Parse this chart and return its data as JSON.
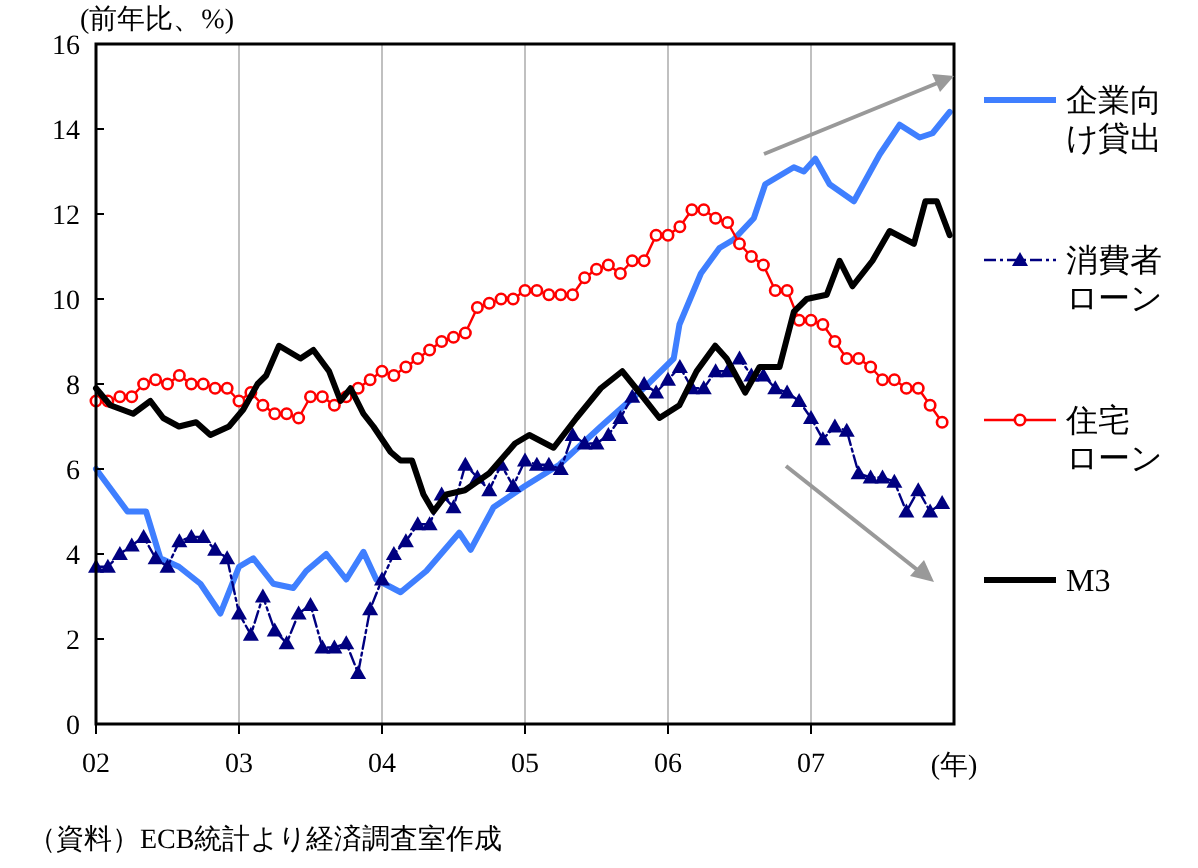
{
  "chart_data": {
    "type": "line",
    "ylabel": "(前年比、%)",
    "xlabel": "(年)",
    "annotations": [
      "（資料）ECB統計より経済調査室作成"
    ],
    "xlim": [
      2002,
      2008
    ],
    "ylim": [
      0,
      16
    ],
    "xticks": [
      {
        "value": 2002,
        "label": "02"
      },
      {
        "value": 2003,
        "label": "03"
      },
      {
        "value": 2004,
        "label": "04"
      },
      {
        "value": 2005,
        "label": "05"
      },
      {
        "value": 2006,
        "label": "06"
      },
      {
        "value": 2007,
        "label": "07"
      }
    ],
    "yticks": [
      0,
      2,
      4,
      6,
      8,
      10,
      12,
      14,
      16
    ],
    "grid": "x",
    "legend": "right",
    "series": [
      {
        "name": "企業向け貸出",
        "color": "#3f7fff",
        "x": [
          2002.0,
          2002.22,
          2002.35,
          2002.45,
          2002.58,
          2002.73,
          2002.87,
          2003.0,
          2003.1,
          2003.24,
          2003.38,
          2003.47,
          2003.61,
          2003.75,
          2003.87,
          2003.96,
          2004.13,
          2004.31,
          2004.54,
          2004.62,
          2004.78,
          2005.0,
          2005.24,
          2005.53,
          2005.83,
          2006.04,
          2006.08,
          2006.23,
          2006.36,
          2006.46,
          2006.6,
          2006.68,
          2006.78,
          2006.88,
          2006.95,
          2007.03,
          2007.13,
          2007.3,
          2007.48,
          2007.62,
          2007.76,
          2007.85,
          2007.97
        ],
        "values": [
          6.0,
          5.0,
          5.0,
          3.9,
          3.7,
          3.3,
          2.6,
          3.7,
          3.9,
          3.3,
          3.2,
          3.6,
          4.0,
          3.4,
          4.05,
          3.4,
          3.1,
          3.6,
          4.5,
          4.1,
          5.1,
          5.6,
          6.1,
          7.0,
          7.9,
          8.6,
          9.4,
          10.6,
          11.2,
          11.4,
          11.9,
          12.7,
          12.9,
          13.1,
          13.0,
          13.3,
          12.7,
          12.3,
          13.4,
          14.1,
          13.8,
          13.9,
          14.4
        ]
      },
      {
        "name": "消費者ローン",
        "color": "#000080",
        "marker": "triangle",
        "line_style": "dashed",
        "x": [
          2002.0,
          2002.083,
          2002.167,
          2002.25,
          2002.333,
          2002.417,
          2002.5,
          2002.583,
          2002.667,
          2002.75,
          2002.833,
          2002.917,
          2003.0,
          2003.083,
          2003.167,
          2003.25,
          2003.333,
          2003.417,
          2003.5,
          2003.583,
          2003.667,
          2003.75,
          2003.833,
          2003.917,
          2004.0,
          2004.083,
          2004.167,
          2004.25,
          2004.333,
          2004.417,
          2004.5,
          2004.583,
          2004.667,
          2004.75,
          2004.833,
          2004.917,
          2005.0,
          2005.083,
          2005.167,
          2005.25,
          2005.333,
          2005.417,
          2005.5,
          2005.583,
          2005.667,
          2005.75,
          2005.833,
          2005.917,
          2006.0,
          2006.083,
          2006.167,
          2006.25,
          2006.333,
          2006.417,
          2006.5,
          2006.583,
          2006.667,
          2006.75,
          2006.833,
          2006.917,
          2007.0,
          2007.083,
          2007.167,
          2007.25,
          2007.333,
          2007.417,
          2007.5,
          2007.583,
          2007.667,
          2007.75,
          2007.833,
          2007.917
        ],
        "values": [
          3.7,
          3.7,
          4.0,
          4.2,
          4.4,
          3.9,
          3.7,
          4.3,
          4.4,
          4.4,
          4.1,
          3.9,
          2.6,
          2.1,
          3.0,
          2.2,
          1.9,
          2.6,
          2.8,
          1.8,
          1.8,
          1.9,
          1.2,
          2.7,
          3.4,
          4.0,
          4.3,
          4.7,
          4.7,
          5.4,
          5.1,
          6.1,
          5.8,
          5.5,
          6.1,
          5.6,
          6.2,
          6.1,
          6.1,
          6.0,
          6.8,
          6.6,
          6.6,
          6.8,
          7.2,
          7.7,
          8.0,
          7.8,
          8.1,
          8.4,
          7.9,
          7.9,
          8.3,
          8.3,
          8.6,
          8.2,
          8.2,
          7.9,
          7.8,
          7.6,
          7.2,
          6.7,
          7.0,
          6.9,
          5.9,
          5.8,
          5.8,
          5.7,
          5.0,
          5.5,
          5.0,
          5.2
        ]
      },
      {
        "name": "住宅ローン",
        "color": "#ff0000",
        "marker": "circle",
        "x": [
          2002.0,
          2002.083,
          2002.167,
          2002.25,
          2002.333,
          2002.417,
          2002.5,
          2002.583,
          2002.667,
          2002.75,
          2002.833,
          2002.917,
          2003.0,
          2003.083,
          2003.167,
          2003.25,
          2003.333,
          2003.417,
          2003.5,
          2003.583,
          2003.667,
          2003.75,
          2003.833,
          2003.917,
          2004.0,
          2004.083,
          2004.167,
          2004.25,
          2004.333,
          2004.417,
          2004.5,
          2004.583,
          2004.667,
          2004.75,
          2004.833,
          2004.917,
          2005.0,
          2005.083,
          2005.167,
          2005.25,
          2005.333,
          2005.417,
          2005.5,
          2005.583,
          2005.667,
          2005.75,
          2005.833,
          2005.917,
          2006.0,
          2006.083,
          2006.167,
          2006.25,
          2006.333,
          2006.417,
          2006.5,
          2006.583,
          2006.667,
          2006.75,
          2006.833,
          2006.917,
          2007.0,
          2007.083,
          2007.167,
          2007.25,
          2007.333,
          2007.417,
          2007.5,
          2007.583,
          2007.667,
          2007.75,
          2007.833,
          2007.917
        ],
        "values": [
          7.6,
          7.6,
          7.7,
          7.7,
          8.0,
          8.1,
          8.0,
          8.2,
          8.0,
          8.0,
          7.9,
          7.9,
          7.6,
          7.8,
          7.5,
          7.3,
          7.3,
          7.2,
          7.7,
          7.7,
          7.5,
          7.7,
          7.9,
          8.1,
          8.3,
          8.2,
          8.4,
          8.6,
          8.8,
          9.0,
          9.1,
          9.2,
          9.8,
          9.9,
          10.0,
          10.0,
          10.2,
          10.2,
          10.1,
          10.1,
          10.1,
          10.5,
          10.7,
          10.8,
          10.6,
          10.9,
          10.9,
          11.5,
          11.5,
          11.7,
          12.1,
          12.1,
          11.9,
          11.8,
          11.3,
          11.0,
          10.8,
          10.2,
          10.2,
          9.5,
          9.5,
          9.4,
          9.0,
          8.6,
          8.6,
          8.4,
          8.1,
          8.1,
          7.9,
          7.9,
          7.5,
          7.1
        ]
      },
      {
        "name": "M3",
        "color": "#000000",
        "x": [
          2002.0,
          2002.1,
          2002.26,
          2002.38,
          2002.47,
          2002.58,
          2002.7,
          2002.8,
          2002.93,
          2003.03,
          2003.13,
          2003.19,
          2003.28,
          2003.43,
          2003.52,
          2003.63,
          2003.71,
          2003.78,
          2003.87,
          2003.94,
          2004.06,
          2004.13,
          2004.21,
          2004.29,
          2004.36,
          2004.45,
          2004.58,
          2004.75,
          2004.93,
          2005.03,
          2005.2,
          2005.36,
          2005.53,
          2005.68,
          2005.8,
          2005.94,
          2006.08,
          2006.2,
          2006.33,
          2006.41,
          2006.54,
          2006.64,
          2006.78,
          2006.88,
          2006.97,
          2007.11,
          2007.2,
          2007.29,
          2007.43,
          2007.55,
          2007.72,
          2007.8,
          2007.88,
          2007.97
        ],
        "values": [
          7.9,
          7.5,
          7.3,
          7.6,
          7.2,
          7.0,
          7.1,
          6.8,
          7.0,
          7.4,
          8.0,
          8.2,
          8.9,
          8.6,
          8.8,
          8.3,
          7.6,
          7.9,
          7.3,
          7.0,
          6.4,
          6.2,
          6.2,
          5.4,
          5.0,
          5.4,
          5.5,
          5.9,
          6.6,
          6.8,
          6.5,
          7.2,
          7.9,
          8.3,
          7.8,
          7.2,
          7.5,
          8.3,
          8.9,
          8.6,
          7.8,
          8.4,
          8.4,
          9.7,
          10.0,
          10.1,
          10.9,
          10.3,
          10.9,
          11.6,
          11.3,
          12.3,
          12.3,
          11.5
        ]
      }
    ]
  }
}
